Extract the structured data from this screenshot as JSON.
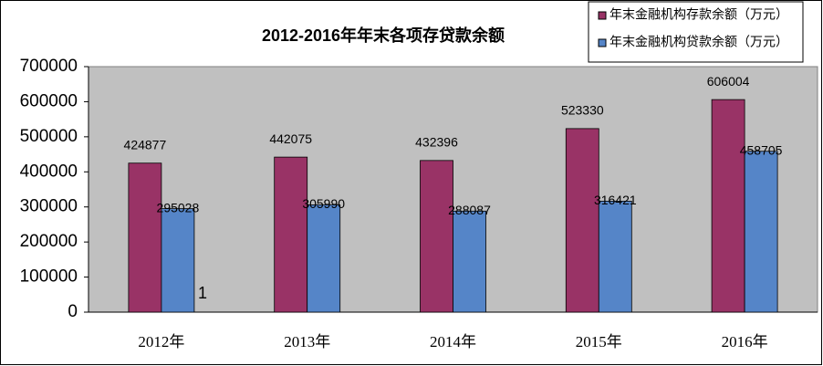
{
  "chart_data": {
    "type": "bar",
    "title": "2012-2016年年末各项存贷款余额",
    "categories": [
      "2012年",
      "2013年",
      "2014年",
      "2015年",
      "2016年"
    ],
    "series": [
      {
        "name": "年末金融机构存款余额（万元）",
        "color": "#993366",
        "values": [
          424877,
          442075,
          432396,
          523330,
          606004
        ]
      },
      {
        "name": "年末金融机构贷款余额（万元）",
        "color": "#5585c8",
        "values": [
          295028,
          305990,
          288087,
          316421,
          458705
        ]
      }
    ],
    "ylim": [
      0,
      700000
    ],
    "yticks": [
      0,
      100000,
      200000,
      300000,
      400000,
      500000,
      600000,
      700000
    ],
    "grid": false,
    "legend": "top-right",
    "annotation": "1"
  }
}
